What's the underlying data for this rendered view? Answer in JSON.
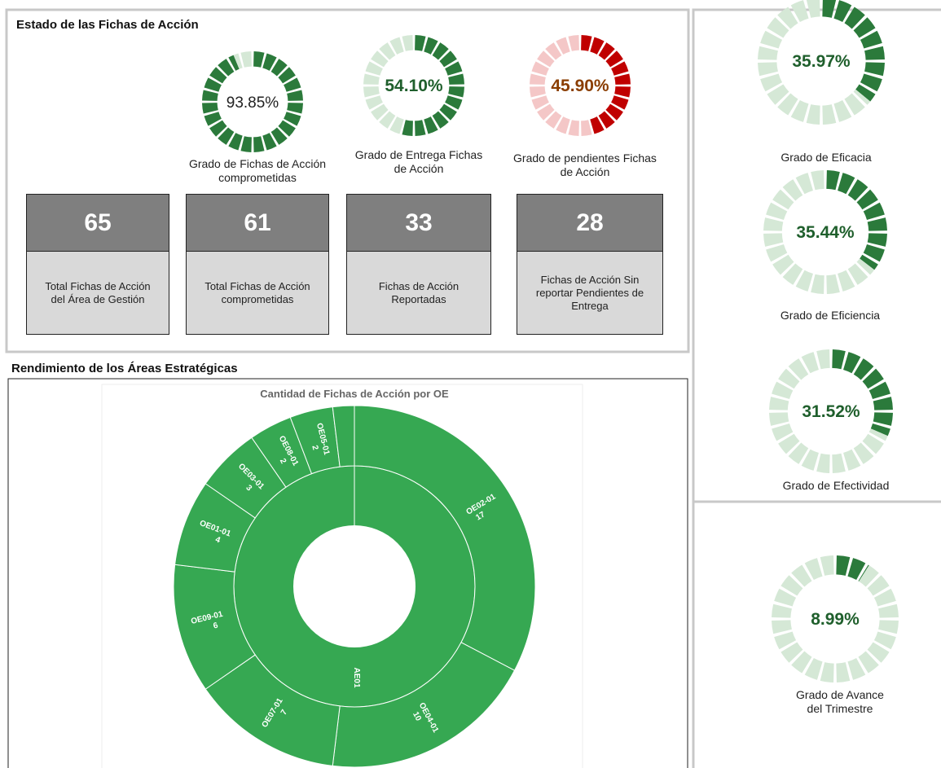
{
  "panels": {
    "status_title": "Estado de las Fichas de Acción",
    "areas_title": "Rendimiento de los Áreas Estratégicas"
  },
  "kpis": [
    {
      "value": 65,
      "label": "Total Fichas de Acción del Área de Gestión"
    },
    {
      "value": 61,
      "label": "Total Fichas de Acción comprometidas"
    },
    {
      "value": 33,
      "label": "Fichas de Acción Reportadas"
    },
    {
      "value": 28,
      "label": "Fichas de Acción Sin reportar Pendientes de Entrega"
    }
  ],
  "chart_data": [
    {
      "type": "gauge",
      "title": "Grado de Fichas de Acción comprometidas",
      "values": [
        93.85
      ],
      "value_labels": [
        "93.85%"
      ],
      "color": "#2b7a3b",
      "track_color": "#d5e8d6",
      "label_color": "#222222",
      "label_bold": false
    },
    {
      "type": "gauge",
      "title": "Grado de Entrega Fichas de Acción",
      "values": [
        54.1
      ],
      "value_labels": [
        "54.10%"
      ],
      "color": "#2b7a3b",
      "track_color": "#d5e8d6",
      "label_color": "#1f5f2c",
      "label_bold": true
    },
    {
      "type": "gauge",
      "title": "Grado de pendientes Fichas de Acción",
      "values": [
        45.9
      ],
      "value_labels": [
        "45.90%"
      ],
      "color": "#c00000",
      "track_color": "#f4c7c7",
      "label_color": "#8a3d00",
      "label_bold": true
    },
    {
      "type": "gauge",
      "title": "Grado de Eficacia",
      "values": [
        35.97
      ],
      "value_labels": [
        "35.97%"
      ],
      "color": "#2b7a3b",
      "track_color": "#d5e8d6",
      "label_color": "#1f5f2c",
      "label_bold": true
    },
    {
      "type": "gauge",
      "title": "Grado de Eficiencia",
      "values": [
        35.44
      ],
      "value_labels": [
        "35.44%"
      ],
      "color": "#2b7a3b",
      "track_color": "#d5e8d6",
      "label_color": "#1f5f2c",
      "label_bold": true
    },
    {
      "type": "gauge",
      "title": "Grado de Efectividad",
      "values": [
        31.52
      ],
      "value_labels": [
        "31.52%"
      ],
      "color": "#2b7a3b",
      "track_color": "#d5e8d6",
      "label_color": "#1f5f2c",
      "label_bold": true
    },
    {
      "type": "gauge",
      "title": "Grado de Avance del Trimestre",
      "values": [
        8.99
      ],
      "value_labels": [
        "8.99%"
      ],
      "color": "#2b7a3b",
      "track_color": "#d5e8d6",
      "label_color": "#1f5f2c",
      "label_bold": true
    },
    {
      "type": "sunburst",
      "title": "Cantidad de Fichas de Acción por OE",
      "center_label": "AE01",
      "categories": [
        "OE02-01",
        "OE04-01",
        "OE07-01",
        "OE09-01",
        "OE01-01",
        "OE03-01",
        "OE08-01",
        "OE05-01",
        null
      ],
      "values": [
        17,
        10,
        7,
        6,
        4,
        3,
        2,
        2,
        1
      ],
      "color": "#36a852"
    }
  ]
}
